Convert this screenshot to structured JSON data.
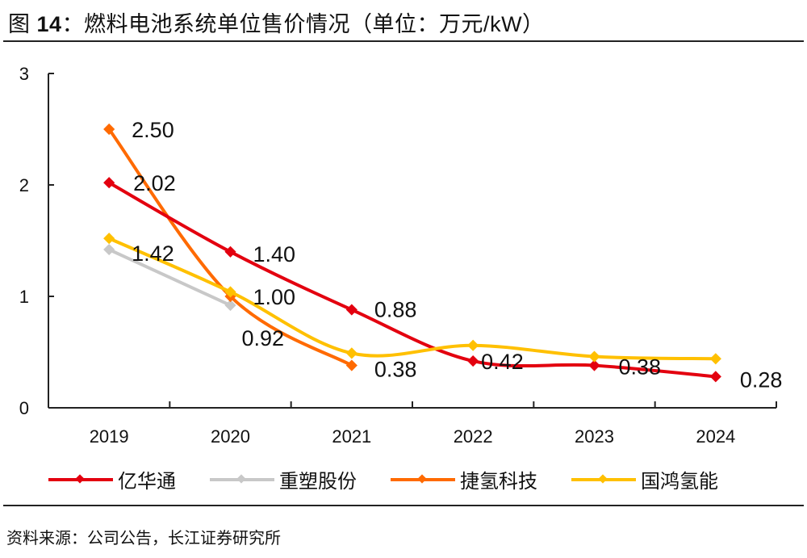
{
  "header": {
    "figure_label": "图",
    "figure_number": "14",
    "title": "：燃料电池系统单位售价情况（单位：万元/kW）"
  },
  "footer": {
    "source": "资料来源：公司公告，长江证券研究所"
  },
  "chart_data": {
    "type": "line",
    "title": "燃料电池系统单位售价情况（单位：万元/kW）",
    "xlabel": "",
    "ylabel": "",
    "categories": [
      "2019",
      "2020",
      "2021",
      "2022",
      "2023",
      "2024"
    ],
    "ylim": [
      0,
      3
    ],
    "yticks": [
      0,
      1,
      2,
      3
    ],
    "grid": false,
    "legend_position": "bottom",
    "smooth": true,
    "series": [
      {
        "name": "亿华通",
        "color": "#e3000f",
        "values": [
          2.02,
          1.4,
          0.88,
          0.42,
          0.38,
          0.28
        ],
        "labels": [
          "2.02",
          "1.40",
          "0.88",
          "0.42",
          "0.38",
          "0.28"
        ]
      },
      {
        "name": "重塑股份",
        "color": "#c8c8c8",
        "values": [
          1.42,
          0.92,
          null,
          null,
          null,
          null
        ],
        "labels": [
          "1.42",
          "0.92",
          null,
          null,
          null,
          null
        ]
      },
      {
        "name": "捷氢科技",
        "color": "#ff6a00",
        "values": [
          2.5,
          1.0,
          0.38,
          null,
          null,
          null
        ],
        "labels": [
          "2.50",
          "1.00",
          "0.38",
          null,
          null,
          null
        ]
      },
      {
        "name": "国鸿氢能",
        "color": "#ffc000",
        "values": [
          1.52,
          1.04,
          0.49,
          0.56,
          0.46,
          0.44
        ],
        "labels": [
          null,
          null,
          null,
          null,
          null,
          null
        ]
      }
    ]
  }
}
